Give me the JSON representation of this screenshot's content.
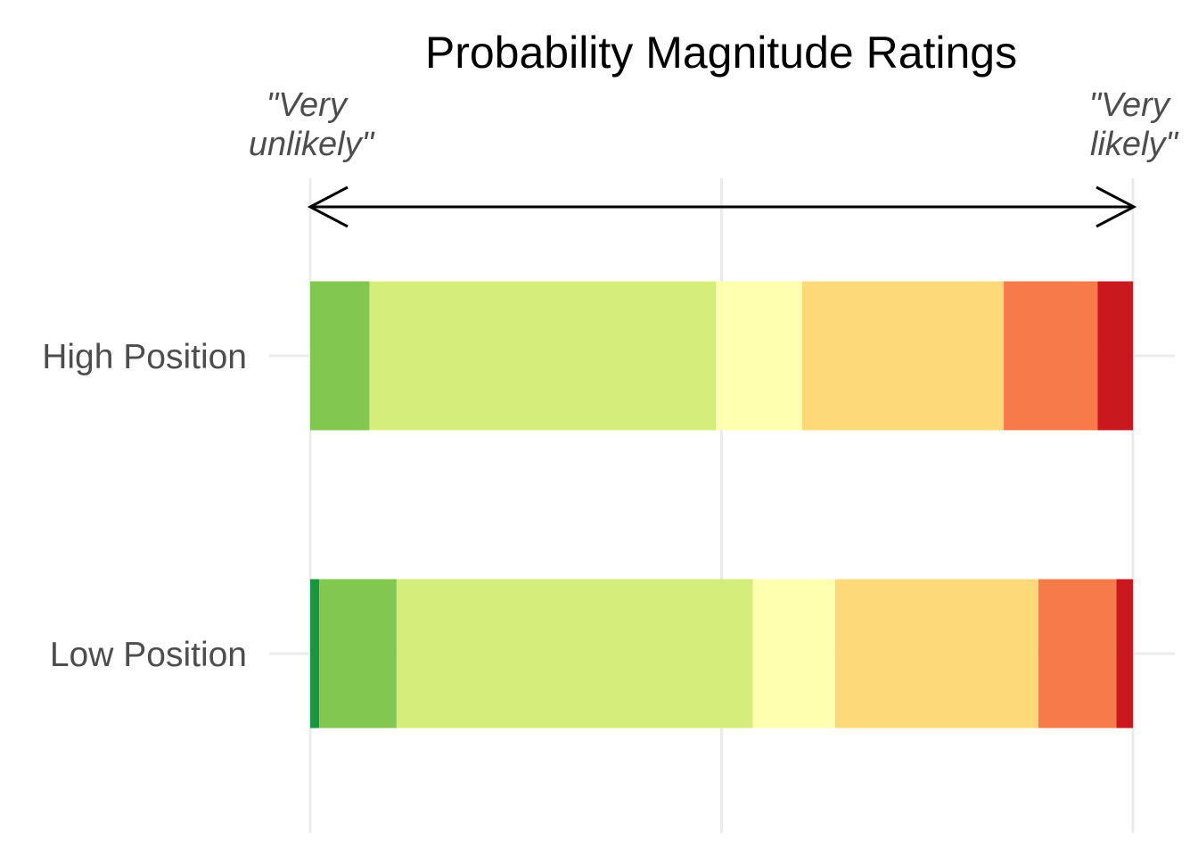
{
  "chart_data": {
    "type": "bar",
    "orientation": "horizontal",
    "stacked": true,
    "title": "Probability Magnitude Ratings",
    "scale_start_label": [
      "\"Very",
      "unlikely\""
    ],
    "scale_end_label": [
      "\"Very",
      "likely\""
    ],
    "categories": [
      "High Position",
      "Low Position"
    ],
    "xlim": [
      0,
      1
    ],
    "grid": true,
    "legend": "none",
    "segment_colors": [
      "#1a9641",
      "#82c850",
      "#d4ed7b",
      "#ffffb0",
      "#fdd97a",
      "#f77b4a",
      "#c9191e"
    ],
    "rows": [
      {
        "category": "High Position",
        "segments": [
          0.0,
          0.072,
          0.421,
          0.105,
          0.245,
          0.114,
          0.043
        ]
      },
      {
        "category": "Low Position",
        "segments": [
          0.011,
          0.094,
          0.433,
          0.1,
          0.247,
          0.095,
          0.02
        ]
      }
    ]
  }
}
